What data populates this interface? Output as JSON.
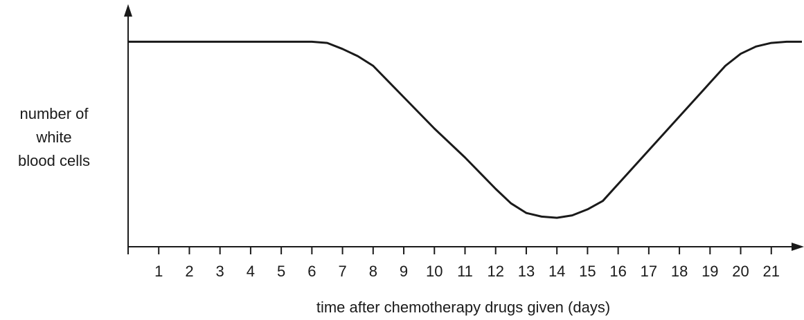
{
  "chart_data": {
    "type": "line",
    "ylabel": [
      "number of",
      "white",
      "blood cells"
    ],
    "xlabel": "time after chemotherapy drugs given (days)",
    "x": [
      0,
      6,
      6.5,
      7,
      7.5,
      8,
      9,
      10,
      11,
      12,
      12.5,
      13,
      13.5,
      14,
      14.5,
      15,
      15.5,
      16,
      17,
      18,
      19,
      19.5,
      20,
      20.5,
      21,
      21.5,
      22
    ],
    "series": [
      {
        "color": "#1a1a1a",
        "values": [
          85,
          85,
          84.5,
          82,
          79,
          75,
          62,
          49,
          37,
          24,
          18,
          14,
          12.5,
          12,
          13,
          15.5,
          19,
          26,
          40,
          54,
          68,
          75,
          80,
          83,
          84.5,
          85,
          85
        ]
      }
    ],
    "xlim": [
      0,
      22
    ],
    "ylim": [
      0,
      100
    ],
    "xticks": [
      1,
      2,
      3,
      4,
      5,
      6,
      7,
      8,
      9,
      10,
      11,
      12,
      13,
      14,
      15,
      16,
      17,
      18,
      19,
      20,
      21
    ]
  }
}
